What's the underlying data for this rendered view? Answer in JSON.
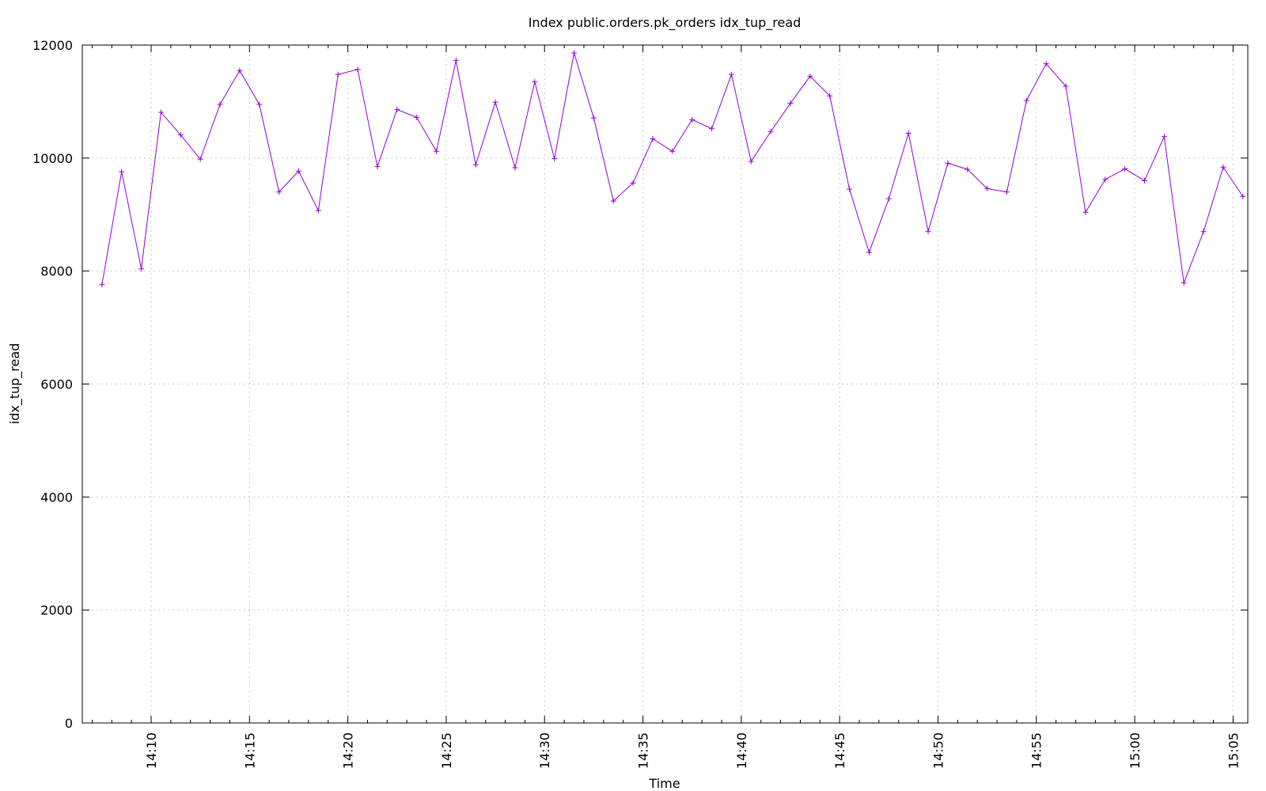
{
  "chart_data": {
    "type": "line",
    "title": "Index public.orders.pk_orders idx_tup_read",
    "xlabel": "Time",
    "ylabel": "idx_tup_read",
    "ylim": [
      0,
      12000
    ],
    "xlim": [
      "14:06:30",
      "15:05:45"
    ],
    "grid": true,
    "legend": "none",
    "series_color": "#9400d3",
    "y_ticks": [
      "0",
      "2000",
      "4000",
      "6000",
      "8000",
      "10000",
      "12000"
    ],
    "x_ticks": [
      "14:10",
      "14:15",
      "14:20",
      "14:25",
      "14:30",
      "14:35",
      "14:40",
      "14:45",
      "14:50",
      "14:55",
      "15:00",
      "15:05"
    ],
    "series": [
      {
        "x": [
          "14:07:30",
          "14:08:30",
          "14:09:30",
          "14:10:30",
          "14:11:30",
          "14:12:30",
          "14:13:30",
          "14:14:30",
          "14:15:30",
          "14:16:30",
          "14:17:30",
          "14:18:30",
          "14:19:30",
          "14:20:30",
          "14:21:30",
          "14:22:30",
          "14:23:30",
          "14:24:30",
          "14:25:30",
          "14:26:30",
          "14:27:30",
          "14:28:30",
          "14:29:30",
          "14:30:30",
          "14:31:30",
          "14:32:30",
          "14:33:30",
          "14:34:30",
          "14:35:30",
          "14:36:30",
          "14:37:30",
          "14:38:30",
          "14:39:30",
          "14:40:30",
          "14:41:30",
          "14:42:30",
          "14:43:30",
          "14:44:30",
          "14:45:30",
          "14:46:30",
          "14:47:30",
          "14:48:30",
          "14:49:30",
          "14:50:30",
          "14:51:30",
          "14:52:30",
          "14:53:30",
          "14:54:30",
          "14:55:30",
          "14:56:30",
          "14:57:30",
          "14:58:30",
          "14:59:30",
          "15:00:30",
          "15:01:30",
          "15:02:30",
          "15:03:30",
          "15:04:30",
          "15:05:30"
        ],
        "values": [
          7760,
          9760,
          8040,
          10810,
          10410,
          9980,
          10950,
          11550,
          10950,
          9400,
          9770,
          9070,
          11480,
          11570,
          9850,
          10860,
          10720,
          10120,
          11730,
          9880,
          10990,
          9830,
          11350,
          9990,
          11860,
          10710,
          9240,
          9560,
          10340,
          10120,
          10680,
          10520,
          11480,
          9940,
          10470,
          10970,
          11450,
          11100,
          9450,
          8330,
          9280,
          10440,
          8700,
          9910,
          9800,
          9460,
          9400,
          11020,
          11670,
          11270,
          9040,
          9620,
          9810,
          9600,
          10380,
          7790,
          8700,
          9840,
          9320
        ]
      }
    ]
  }
}
